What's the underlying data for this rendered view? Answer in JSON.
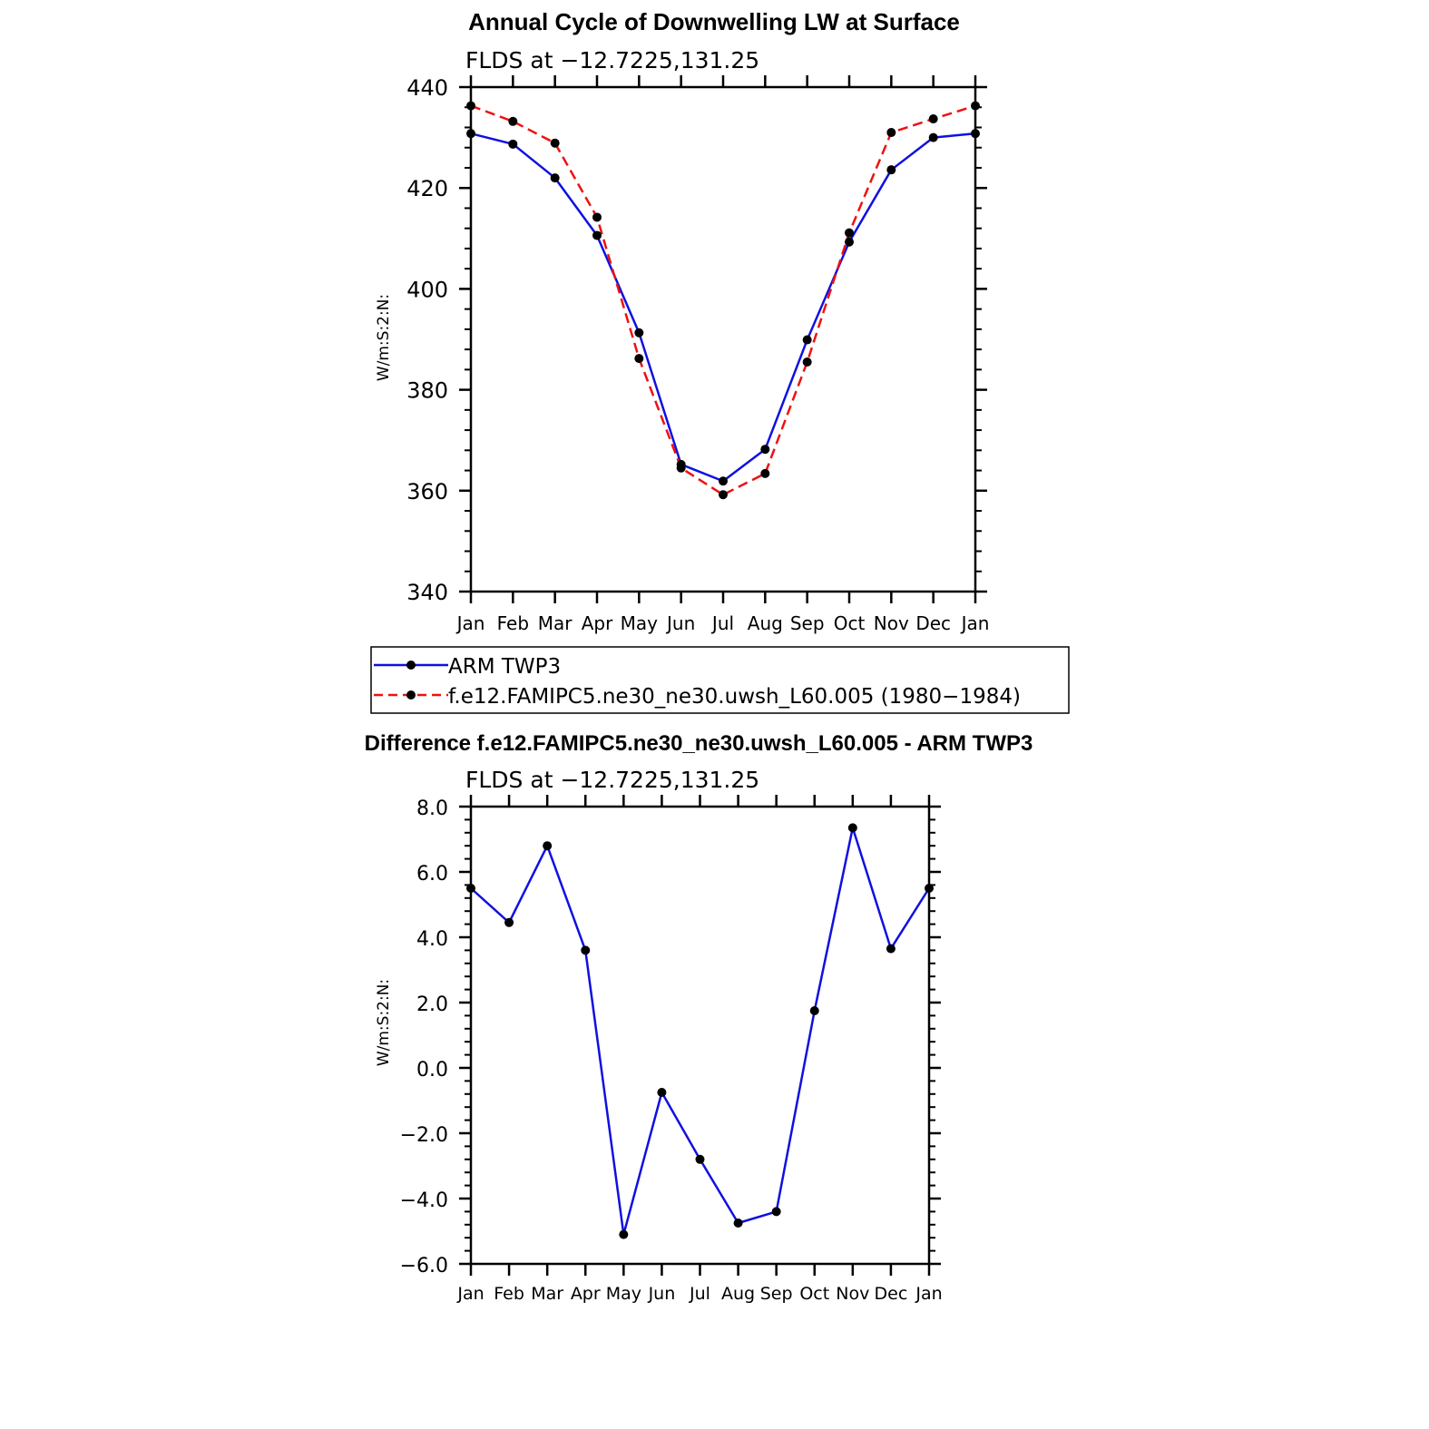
{
  "chart_data": [
    {
      "type": "line",
      "title": "Annual Cycle of Downwelling LW at Surface",
      "subtitle": "FLDS at −12.7225,131.25",
      "xlabel": "",
      "ylabel": "W/m:S:2:N:",
      "categories": [
        "Jan",
        "Feb",
        "Mar",
        "Apr",
        "May",
        "Jun",
        "Jul",
        "Aug",
        "Sep",
        "Oct",
        "Nov",
        "Dec",
        "Jan"
      ],
      "ylim": [
        340,
        440
      ],
      "yticks": [
        340,
        360,
        380,
        400,
        420,
        440
      ],
      "ytick_labels": [
        "340",
        "360",
        "380",
        "400",
        "420",
        "440"
      ],
      "series": [
        {
          "name": "ARM TWP3",
          "color": "#1010e0",
          "style": "solid",
          "values": [
            430.8,
            428.7,
            422.0,
            410.6,
            391.3,
            365.2,
            361.9,
            368.2,
            389.9,
            409.3,
            423.6,
            430.0,
            430.8
          ]
        },
        {
          "name": "f.e12.FAMIPC5.ne30_ne30.uwsh_L60.005 (1980−1984)",
          "color": "#ee1111",
          "style": "dashed",
          "values": [
            436.3,
            433.2,
            428.9,
            414.2,
            386.2,
            364.5,
            359.2,
            363.4,
            385.5,
            411.1,
            431.0,
            433.7,
            436.3
          ]
        }
      ],
      "legend": "below"
    },
    {
      "type": "line",
      "title": "Difference f.e12.FAMIPC5.ne30_ne30.uwsh_L60.005 - ARM TWP3",
      "subtitle": "FLDS at −12.7225,131.25",
      "xlabel": "",
      "ylabel": "W/m:S:2:N:",
      "categories": [
        "Jan",
        "Feb",
        "Mar",
        "Apr",
        "May",
        "Jun",
        "Jul",
        "Aug",
        "Sep",
        "Oct",
        "Nov",
        "Dec",
        "Jan"
      ],
      "ylim": [
        -6.0,
        8.0
      ],
      "yticks": [
        -6,
        -4,
        -2,
        0,
        2,
        4,
        6,
        8
      ],
      "ytick_labels": [
        "−6.0",
        "−4.0",
        "−2.0",
        "0.0",
        "2.0",
        "4.0",
        "6.0",
        "8.0"
      ],
      "series": [
        {
          "name": "Difference",
          "color": "#1010e0",
          "style": "solid",
          "values": [
            5.5,
            4.45,
            6.8,
            3.6,
            -5.1,
            -0.75,
            -2.8,
            -4.75,
            -4.4,
            1.75,
            7.35,
            3.65,
            5.5
          ]
        }
      ]
    }
  ]
}
